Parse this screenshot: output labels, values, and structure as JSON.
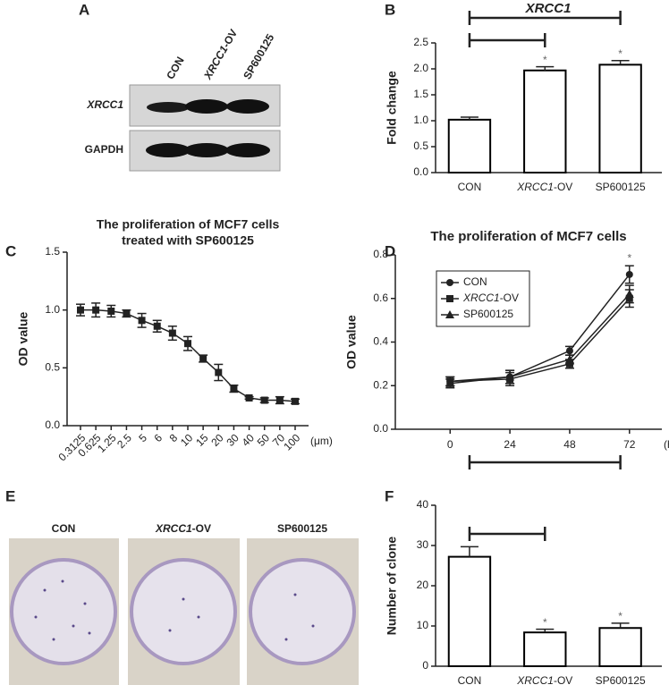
{
  "blot": {
    "panel": "A",
    "lanes": [
      "CON",
      "XRCC1-OV",
      "SP600125"
    ],
    "rows": [
      "XRCC1",
      "GAPDH"
    ]
  },
  "dishes": {
    "panel": "E",
    "titles": [
      "CON",
      "XRCC1-OV",
      "SP600125"
    ]
  },
  "chart_data": [
    {
      "type": "bar",
      "panel": "B",
      "title": "XRCC1",
      "ylabel": "Fold change",
      "categories": [
        "CON",
        "XRCC1-OV",
        "SP600125"
      ],
      "values": [
        1.02,
        1.97,
        2.08
      ],
      "errors": [
        0.05,
        0.07,
        0.08
      ],
      "markers": [
        null,
        "*",
        "*"
      ],
      "color": "#ffffff",
      "edgecolor": "#000000",
      "ylim": [
        0,
        2.5
      ],
      "yticks": [
        {
          "value": 0,
          "label": "0.0"
        },
        {
          "value": 0.5,
          "label": "0.5"
        },
        {
          "value": 1,
          "label": "1.0"
        },
        {
          "value": 1.5,
          "label": "1.5"
        },
        {
          "value": 2,
          "label": "2.0"
        },
        {
          "value": 2.5,
          "label": "2.5"
        }
      ]
    },
    {
      "type": "line",
      "panel": "C",
      "title": [
        "The proliferation of MCF7 cells",
        "treated with SP600125"
      ],
      "ylabel": "OD value",
      "xunit": "(μm)",
      "categories": [
        "0.3125",
        "0.625",
        "1.25",
        "2.5",
        "5",
        "6",
        "8",
        "10",
        "15",
        "20",
        "30",
        "40",
        "50",
        "70",
        "100"
      ],
      "series": [
        {
          "color": "#222222",
          "marker": "square",
          "values": [
            1.0,
            1.0,
            0.99,
            0.97,
            0.91,
            0.86,
            0.8,
            0.71,
            0.58,
            0.46,
            0.32,
            0.24,
            0.22,
            0.22,
            0.21
          ],
          "errors": [
            0.05,
            0.06,
            0.05,
            0.03,
            0.06,
            0.05,
            0.06,
            0.06,
            0.03,
            0.07,
            0.03,
            0.01,
            0.02,
            0.03,
            0.02
          ]
        }
      ],
      "ylim": [
        0,
        1.5
      ],
      "yticks": [
        {
          "value": 0,
          "label": "0.0"
        },
        {
          "value": 0.5,
          "label": "0.5"
        },
        {
          "value": 1,
          "label": "1.0"
        },
        {
          "value": 1.5,
          "label": "1.5"
        }
      ]
    },
    {
      "type": "line",
      "panel": "D",
      "title": "The proliferation of MCF7 cells",
      "ylabel": "OD value",
      "xunit": "(h)",
      "x": [
        0,
        24,
        48,
        72
      ],
      "xlim": [
        -22,
        85
      ],
      "xticks": [
        0,
        24,
        48,
        72
      ],
      "legend": "upper left",
      "series": [
        {
          "name": "CON",
          "color": "#222222",
          "marker": "circle",
          "values": [
            0.22,
            0.24,
            0.36,
            0.71
          ],
          "errors": [
            0.02,
            0.03,
            0.02,
            0.04
          ],
          "point_labels": [
            null,
            null,
            null,
            "*"
          ]
        },
        {
          "name": "XRCC1-OV",
          "color": "#222222",
          "marker": "square",
          "values": [
            0.22,
            0.23,
            0.3,
            0.6
          ],
          "errors": [
            0.02,
            0.03,
            0.02,
            0.04
          ]
        },
        {
          "name": "SP600125",
          "color": "#222222",
          "marker": "triangle",
          "values": [
            0.21,
            0.24,
            0.32,
            0.62
          ],
          "errors": [
            0.02,
            0.03,
            0.02,
            0.04
          ]
        }
      ],
      "ylim": [
        0,
        0.8
      ],
      "yticks": [
        {
          "value": 0,
          "label": "0.0"
        },
        {
          "value": 0.2,
          "label": "0.2"
        },
        {
          "value": 0.4,
          "label": "0.4"
        },
        {
          "value": 0.6,
          "label": "0.6"
        },
        {
          "value": 0.8,
          "label": "0.8"
        }
      ]
    },
    {
      "type": "bar",
      "panel": "F",
      "ylabel": "Number of clone",
      "categories": [
        "CON",
        "XRCC1-OV",
        "SP600125"
      ],
      "values": [
        27.2,
        8.4,
        9.5
      ],
      "errors": [
        2.5,
        0.8,
        1.2
      ],
      "markers": [
        null,
        "*",
        "*"
      ],
      "color": "#ffffff",
      "edgecolor": "#000000",
      "ylim": [
        0,
        40
      ],
      "yticks": [
        0,
        10,
        20,
        30,
        40
      ]
    }
  ]
}
